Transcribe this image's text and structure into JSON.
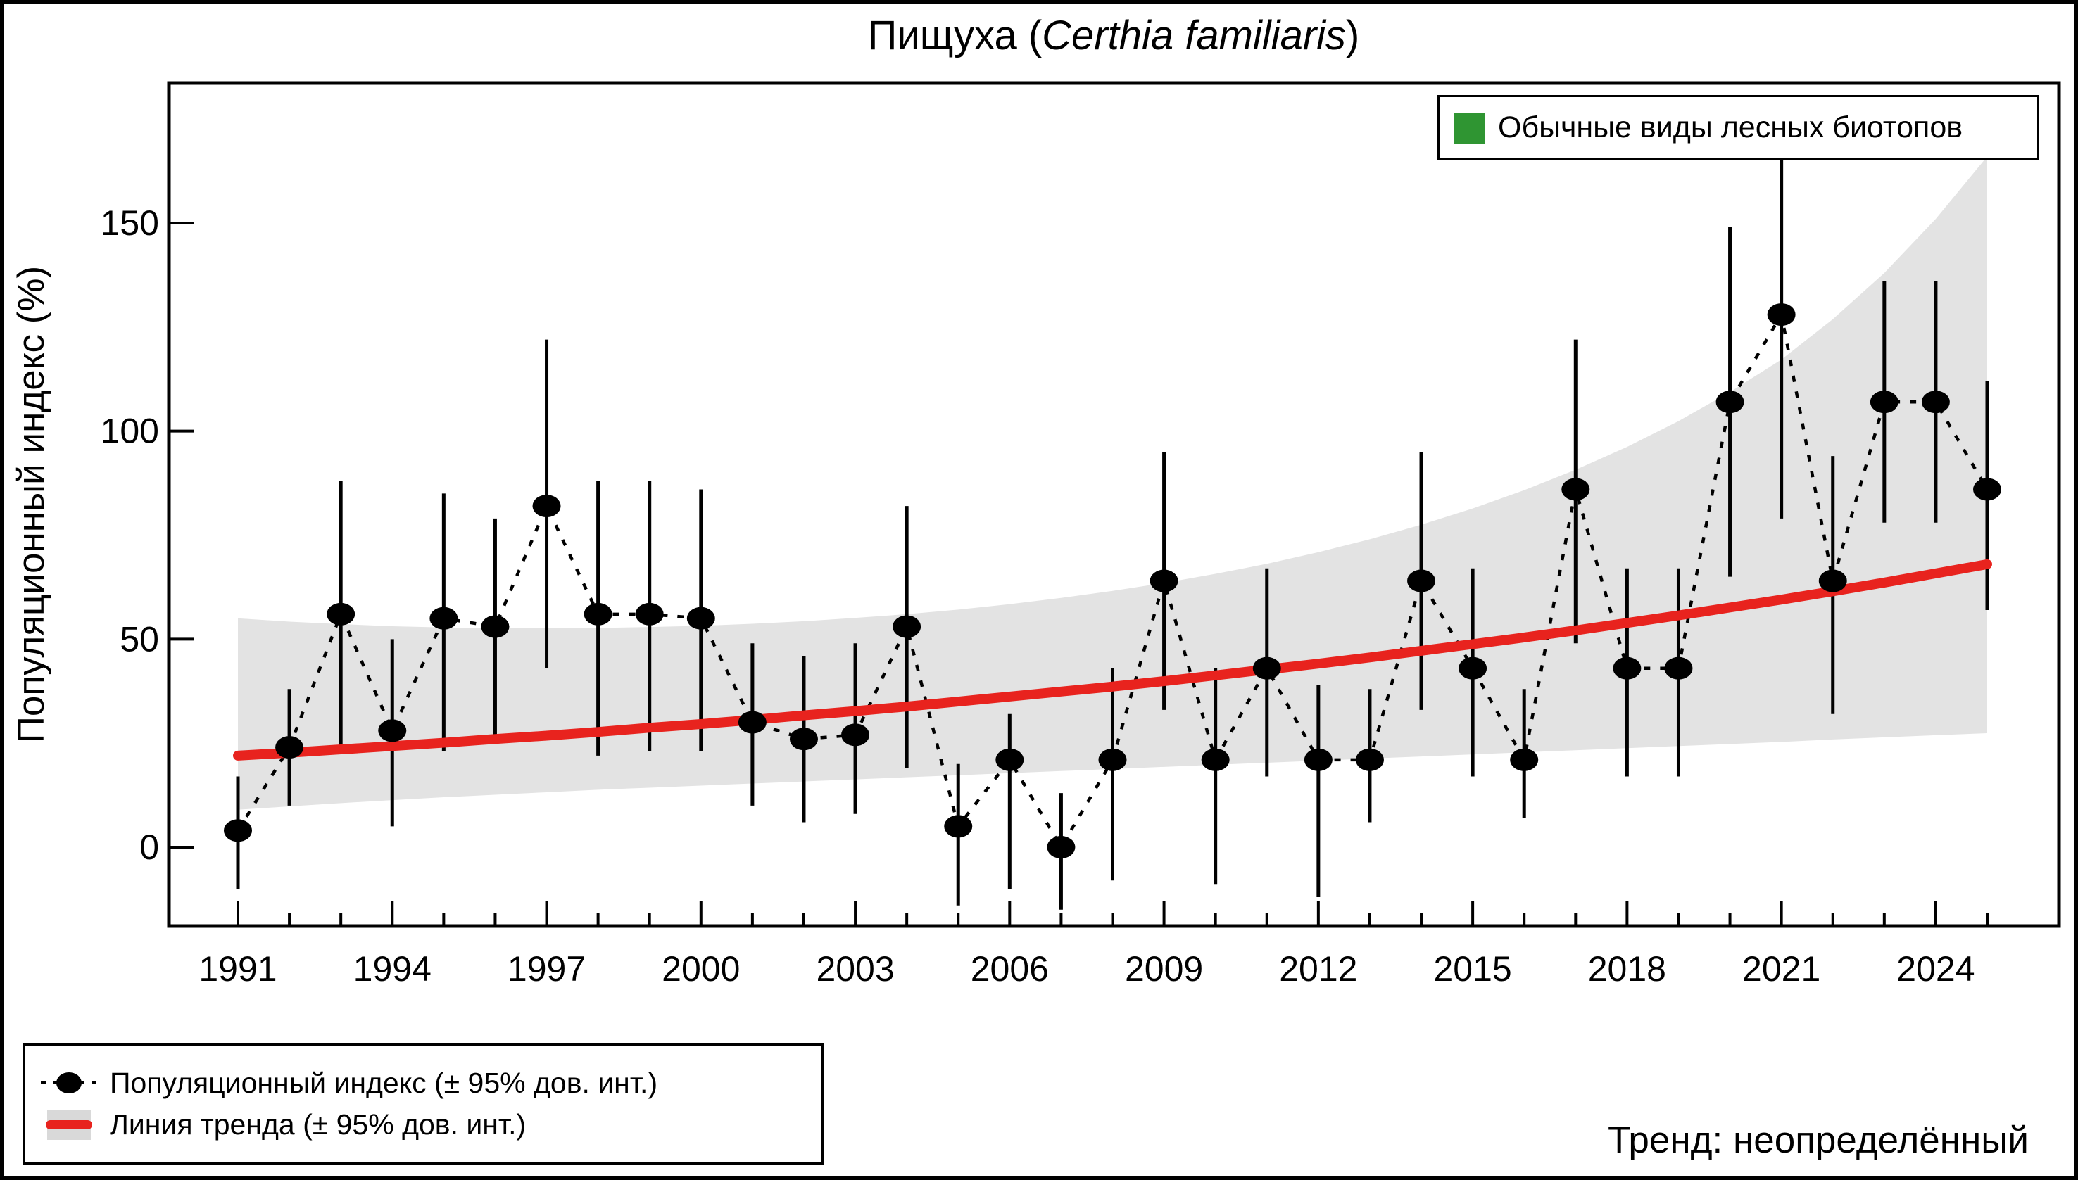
{
  "title": {
    "prefix": "Пищуха (",
    "species": "Certhia familiaris",
    "suffix": ")"
  },
  "y_axis": {
    "label": "Популяционный индекс (%)",
    "ticks": [
      0,
      50,
      100,
      150
    ]
  },
  "x_axis": {
    "tick_years": [
      1991,
      1994,
      1997,
      2000,
      2003,
      2006,
      2009,
      2012,
      2015,
      2018,
      2021,
      2024
    ]
  },
  "legend_top": {
    "label": "Обычные виды лесных биотопов",
    "color": "#2f9532"
  },
  "legend_bottom": {
    "index_label": "Популяционный индекс (± 95% дов. инт.)",
    "trend_label": "Линия тренда (± 95% дов. инт.)"
  },
  "trend_note": "Тренд: неопределённый",
  "colors": {
    "point": "#000000",
    "index_line": "#000000",
    "trend_line": "#e8231e",
    "confidence_band": "#e3e3e3",
    "group_swatch": "#2f9532",
    "axis": "#000000"
  },
  "chart_data": {
    "type": "line",
    "title": "Пищуха (Certhia familiaris)",
    "xlabel": "",
    "ylabel": "Популяционный индекс (%)",
    "xlim": [
      1989.7,
      2026.4
    ],
    "ylim": [
      -18.9,
      183.7
    ],
    "grid": false,
    "legend_position": "index legend bottom-left, group legend top-right, trend note bottom-right",
    "x": [
      1991,
      1992,
      1993,
      1994,
      1995,
      1996,
      1997,
      1998,
      1999,
      2000,
      2001,
      2002,
      2003,
      2004,
      2005,
      2006,
      2007,
      2008,
      2009,
      2010,
      2011,
      2012,
      2013,
      2014,
      2015,
      2016,
      2017,
      2018,
      2019,
      2020,
      2021,
      2022,
      2023,
      2024,
      2025
    ],
    "series": [
      {
        "name": "Популяционный индекс (± 95% дов. инт.)",
        "style": "black points with dotted connecting line and vertical 95% CI bars",
        "values": [
          4,
          24,
          56,
          28,
          55,
          53,
          82,
          56,
          56,
          55,
          30,
          26,
          27,
          53,
          5,
          21,
          0,
          21,
          64,
          21,
          43,
          21,
          21,
          64,
          43,
          21,
          86,
          43,
          43,
          107,
          128,
          64,
          107,
          107,
          86
        ],
        "ci_low": [
          -10,
          10,
          23,
          5,
          23,
          26,
          43,
          22,
          23,
          23,
          10,
          6,
          8,
          19,
          -14,
          -10,
          -15,
          -8,
          33,
          -9,
          17,
          -12,
          6,
          33,
          17,
          7,
          49,
          17,
          17,
          65,
          79,
          32,
          78,
          78,
          57
        ],
        "ci_high": [
          17,
          38,
          88,
          50,
          85,
          79,
          122,
          88,
          88,
          86,
          49,
          46,
          49,
          82,
          20,
          32,
          13,
          43,
          95,
          43,
          67,
          39,
          38,
          95,
          67,
          38,
          122,
          67,
          67,
          149,
          168,
          94,
          136,
          136,
          112
        ]
      },
      {
        "name": "Линия тренда (± 95% дов. инт.)",
        "style": "thick red line with gray 95% confidence band",
        "values": [
          22.0,
          22.7,
          23.5,
          24.3,
          25.1,
          26.0,
          26.8,
          27.7,
          28.7,
          29.6,
          30.6,
          31.7,
          32.7,
          33.8,
          35.0,
          36.2,
          37.4,
          38.6,
          39.9,
          41.3,
          42.7,
          44.1,
          45.6,
          47.2,
          48.8,
          50.4,
          52.1,
          53.9,
          55.7,
          57.6,
          59.5,
          61.5,
          63.6,
          65.8,
          68.0
        ],
        "band_low": [
          9.0,
          9.8,
          10.6,
          11.3,
          12.0,
          12.6,
          13.2,
          13.8,
          14.3,
          14.8,
          15.3,
          15.8,
          16.3,
          16.8,
          17.3,
          17.8,
          18.3,
          18.8,
          19.3,
          19.8,
          20.3,
          20.8,
          21.3,
          21.8,
          22.3,
          22.8,
          23.3,
          23.8,
          24.3,
          24.8,
          25.3,
          25.9,
          26.4,
          26.9,
          27.4
        ],
        "band_high": [
          55.0,
          54.2,
          53.6,
          53.1,
          52.8,
          52.6,
          52.6,
          52.7,
          52.9,
          53.2,
          53.7,
          54.3,
          55.1,
          56.0,
          57.1,
          58.4,
          59.9,
          61.6,
          63.5,
          65.7,
          68.1,
          70.9,
          74.0,
          77.5,
          81.4,
          85.8,
          90.7,
          96.2,
          102.4,
          109.4,
          117.2,
          126.9,
          138.0,
          151.0,
          166.0
        ]
      }
    ]
  }
}
